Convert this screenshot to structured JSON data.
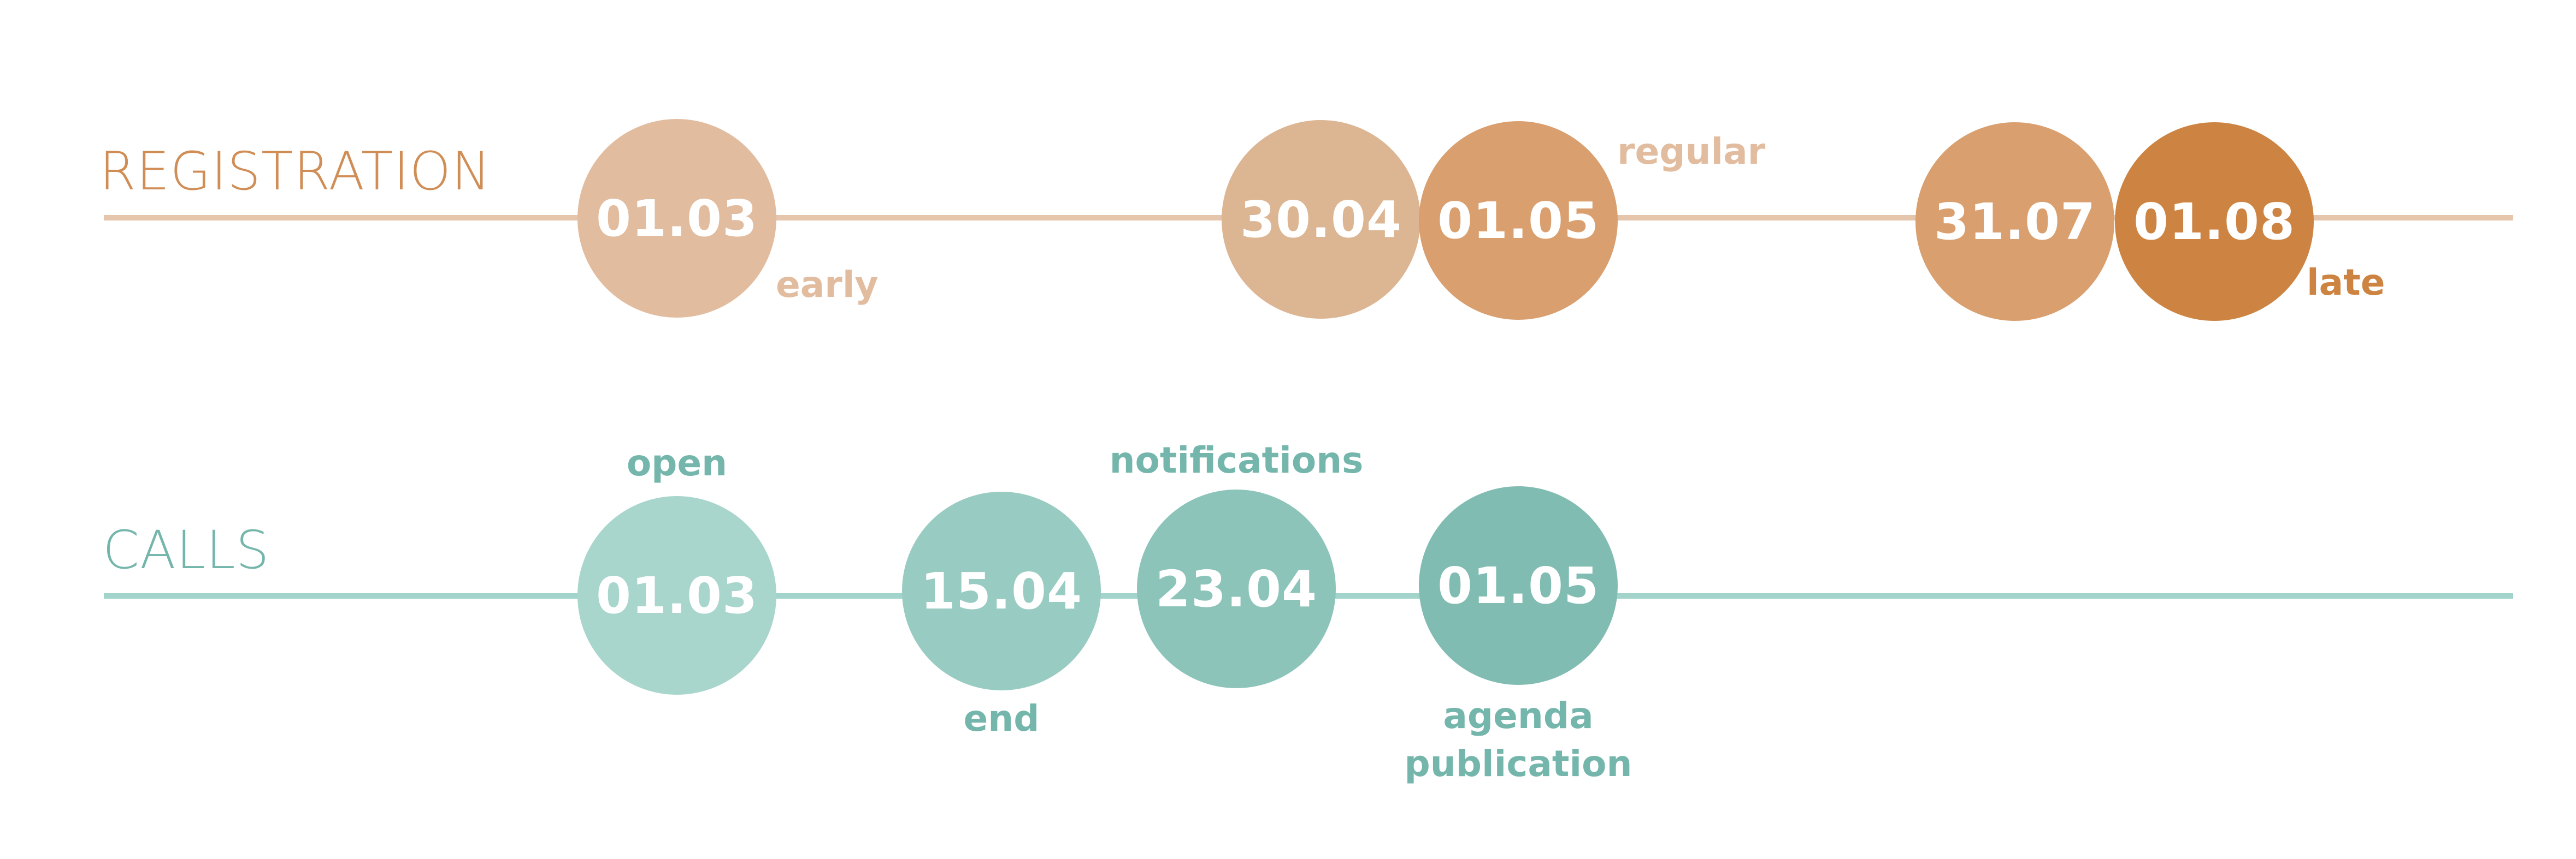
{
  "colors": {
    "registration_title": "#d08d55",
    "registration_line": "#e6c5ad",
    "calls_title": "#74b6ab",
    "calls_line": "#a3d4cb"
  },
  "registration": {
    "title": "REGISTRATION",
    "dates": [
      {
        "label": "01.03",
        "color": "#e2bc9f"
      },
      {
        "label": "30.04",
        "color": "#dcb592"
      },
      {
        "label": "01.05",
        "color": "#d99f6e"
      },
      {
        "label": "31.07",
        "color": "#d99f6e"
      },
      {
        "label": "01.08",
        "color": "#cd8443"
      }
    ],
    "notes": [
      {
        "text": "early",
        "color": "#e2bc9f"
      },
      {
        "text": "regular",
        "color": "#e2bc9f"
      },
      {
        "text": "late",
        "color": "#cd8443"
      }
    ]
  },
  "calls": {
    "title": "CALLS",
    "dates": [
      {
        "label": "01.03",
        "color": "#a8d5cc"
      },
      {
        "label": "15.04",
        "color": "#98cbc1"
      },
      {
        "label": "23.04",
        "color": "#8cc4ba"
      },
      {
        "label": "01.05",
        "color": "#80bcb2"
      }
    ],
    "notes": [
      {
        "text": "open",
        "color": "#74b6ab"
      },
      {
        "text": "end",
        "color": "#74b6ab"
      },
      {
        "text": "notifications",
        "color": "#74b6ab"
      },
      {
        "text": "agenda",
        "color": "#74b6ab"
      },
      {
        "text": "publication",
        "color": "#74b6ab"
      }
    ]
  }
}
